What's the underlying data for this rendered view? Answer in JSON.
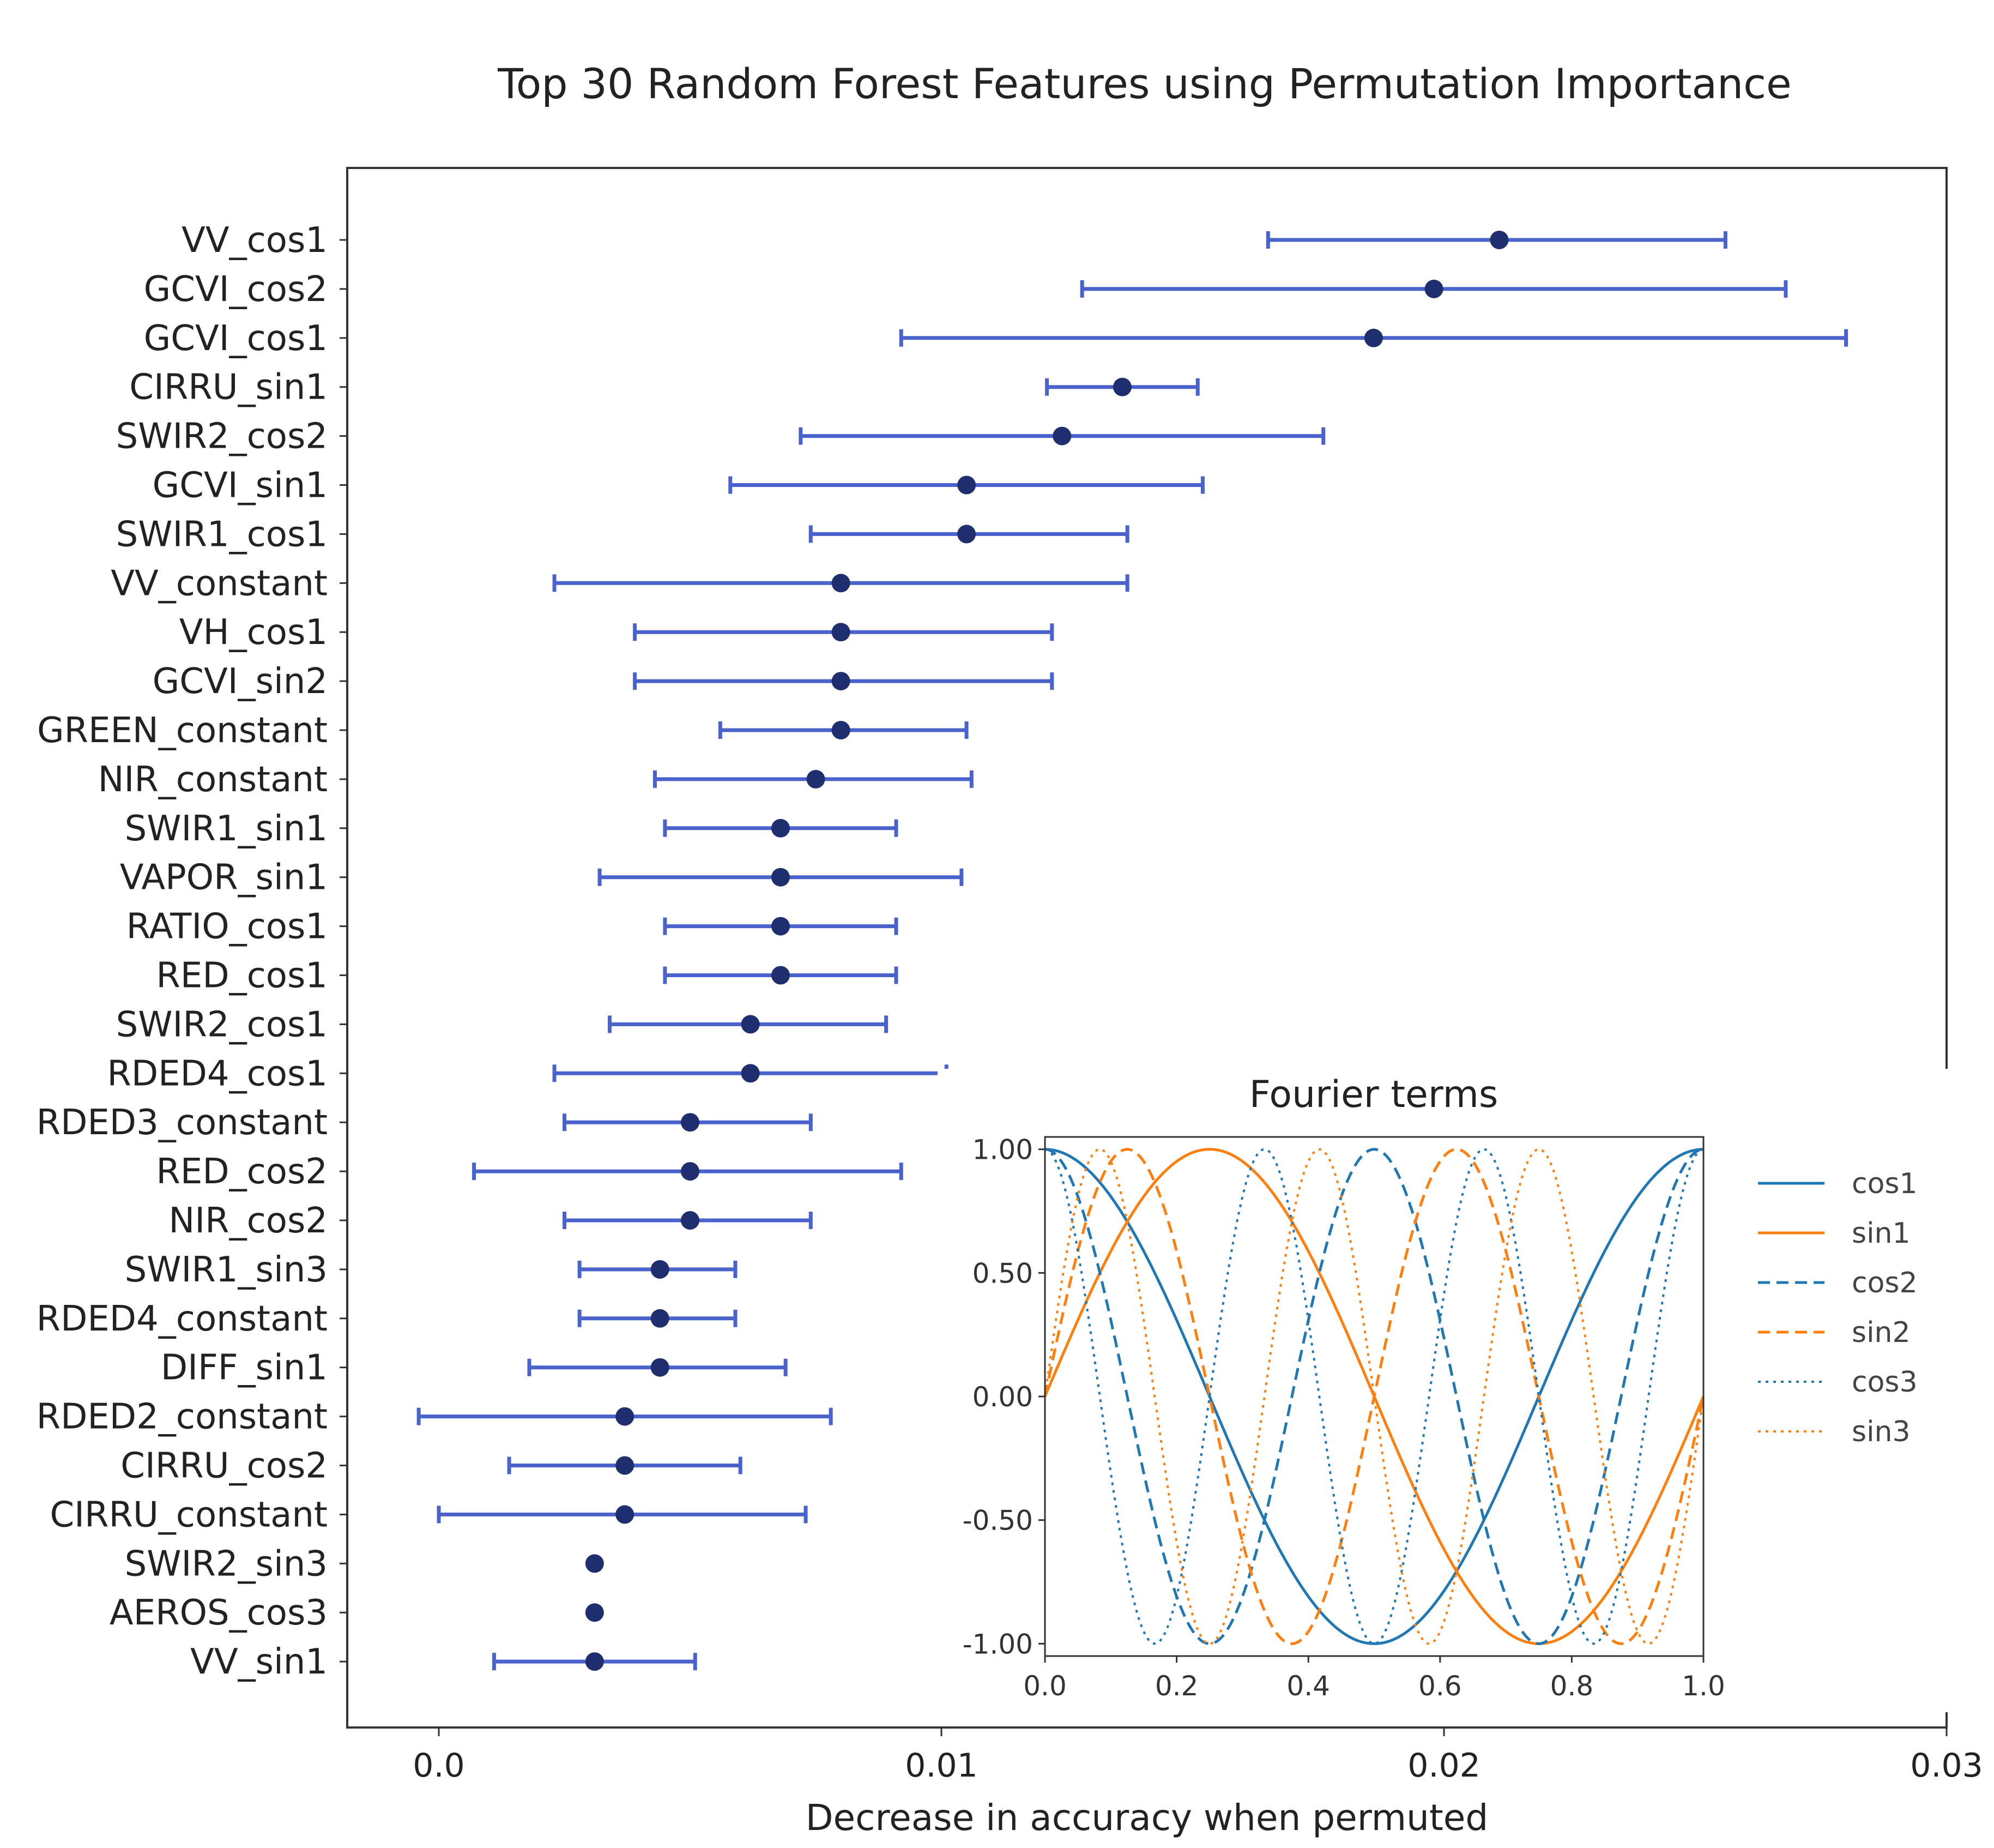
{
  "chart_data": [
    {
      "type": "errorbar-dot",
      "title": "Top 30 Random Forest Features using Permutation Importance",
      "xlabel": "Decrease in accuracy when permuted",
      "ylabel": "",
      "xlim": [
        -0.0018,
        0.03
      ],
      "xticks": [
        0.0,
        0.01,
        0.02,
        0.03
      ],
      "xtick_labels": [
        "0.0",
        "0.01",
        "0.02",
        "0.03"
      ],
      "colors": {
        "point": "#1f2e6e",
        "errorbar": "#4a62cc"
      },
      "features": [
        {
          "name": "VV_cos1",
          "value": 0.0211,
          "low": 0.0165,
          "high": 0.0256
        },
        {
          "name": "GCVI_cos2",
          "value": 0.0198,
          "low": 0.0128,
          "high": 0.0268
        },
        {
          "name": "GCVI_cos1",
          "value": 0.0186,
          "low": 0.0092,
          "high": 0.028
        },
        {
          "name": "CIRRU_sin1",
          "value": 0.0136,
          "low": 0.0121,
          "high": 0.0151
        },
        {
          "name": "SWIR2_cos2",
          "value": 0.0124,
          "low": 0.0072,
          "high": 0.0176
        },
        {
          "name": "GCVI_sin1",
          "value": 0.0105,
          "low": 0.0058,
          "high": 0.0152
        },
        {
          "name": "SWIR1_cos1",
          "value": 0.0105,
          "low": 0.0074,
          "high": 0.0137
        },
        {
          "name": "VV_constant",
          "value": 0.008,
          "low": 0.0023,
          "high": 0.0137
        },
        {
          "name": "VH_cos1",
          "value": 0.008,
          "low": 0.0039,
          "high": 0.0122
        },
        {
          "name": "GCVI_sin2",
          "value": 0.008,
          "low": 0.0039,
          "high": 0.0122
        },
        {
          "name": "GREEN_constant",
          "value": 0.008,
          "low": 0.0056,
          "high": 0.0105
        },
        {
          "name": "NIR_constant",
          "value": 0.0075,
          "low": 0.0043,
          "high": 0.0106
        },
        {
          "name": "SWIR1_sin1",
          "value": 0.0068,
          "low": 0.0045,
          "high": 0.0091
        },
        {
          "name": "VAPOR_sin1",
          "value": 0.0068,
          "low": 0.0032,
          "high": 0.0104
        },
        {
          "name": "RATIO_cos1",
          "value": 0.0068,
          "low": 0.0045,
          "high": 0.0091
        },
        {
          "name": "RED_cos1",
          "value": 0.0068,
          "low": 0.0045,
          "high": 0.0091
        },
        {
          "name": "SWIR2_cos1",
          "value": 0.0062,
          "low": 0.0034,
          "high": 0.0089
        },
        {
          "name": "RDED4_cos1",
          "value": 0.0062,
          "low": 0.0023,
          "high": 0.0101
        },
        {
          "name": "RDED3_constant",
          "value": 0.005,
          "low": 0.0025,
          "high": 0.0074
        },
        {
          "name": "RED_cos2",
          "value": 0.005,
          "low": 0.0007,
          "high": 0.0092
        },
        {
          "name": "NIR_cos2",
          "value": 0.005,
          "low": 0.0025,
          "high": 0.0074
        },
        {
          "name": "SWIR1_sin3",
          "value": 0.0044,
          "low": 0.0028,
          "high": 0.0059
        },
        {
          "name": "RDED4_constant",
          "value": 0.0044,
          "low": 0.0028,
          "high": 0.0059
        },
        {
          "name": "DIFF_sin1",
          "value": 0.0044,
          "low": 0.0018,
          "high": 0.0069
        },
        {
          "name": "RDED2_constant",
          "value": 0.0037,
          "low": -0.0004,
          "high": 0.0078
        },
        {
          "name": "CIRRU_cos2",
          "value": 0.0037,
          "low": 0.0014,
          "high": 0.006
        },
        {
          "name": "CIRRU_constant",
          "value": 0.0037,
          "low": 0.0,
          "high": 0.0073
        },
        {
          "name": "SWIR2_sin3",
          "value": 0.0031,
          "low": 0.0031,
          "high": 0.0031
        },
        {
          "name": "AEROS_cos3",
          "value": 0.0031,
          "low": 0.0031,
          "high": 0.0031
        },
        {
          "name": "VV_sin1",
          "value": 0.0031,
          "low": 0.0011,
          "high": 0.0051
        }
      ]
    },
    {
      "type": "line",
      "title": "Fourier terms",
      "xlim": [
        0.0,
        1.0
      ],
      "ylim": [
        -1.05,
        1.05
      ],
      "xticks": [
        0.0,
        0.2,
        0.4,
        0.6,
        0.8,
        1.0
      ],
      "xtick_labels": [
        "0.0",
        "0.2",
        "0.4",
        "0.6",
        "0.8",
        "1.0"
      ],
      "yticks": [
        1.0,
        0.5,
        0.0,
        -0.5,
        -1.0
      ],
      "ytick_labels": [
        "1.00",
        "0.50",
        "0.00",
        "-0.50",
        "-1.00"
      ],
      "legend_position": "right",
      "series": [
        {
          "name": "cos1",
          "fn": "cos",
          "k": 1,
          "color": "#1f77b4",
          "style": "solid"
        },
        {
          "name": "sin1",
          "fn": "sin",
          "k": 1,
          "color": "#ff7f0e",
          "style": "solid"
        },
        {
          "name": "cos2",
          "fn": "cos",
          "k": 2,
          "color": "#1f77b4",
          "style": "dashed"
        },
        {
          "name": "sin2",
          "fn": "sin",
          "k": 2,
          "color": "#ff7f0e",
          "style": "dashed"
        },
        {
          "name": "cos3",
          "fn": "cos",
          "k": 3,
          "color": "#1f77b4",
          "style": "dotted"
        },
        {
          "name": "sin3",
          "fn": "sin",
          "k": 3,
          "color": "#ff7f0e",
          "style": "dotted"
        }
      ]
    }
  ]
}
